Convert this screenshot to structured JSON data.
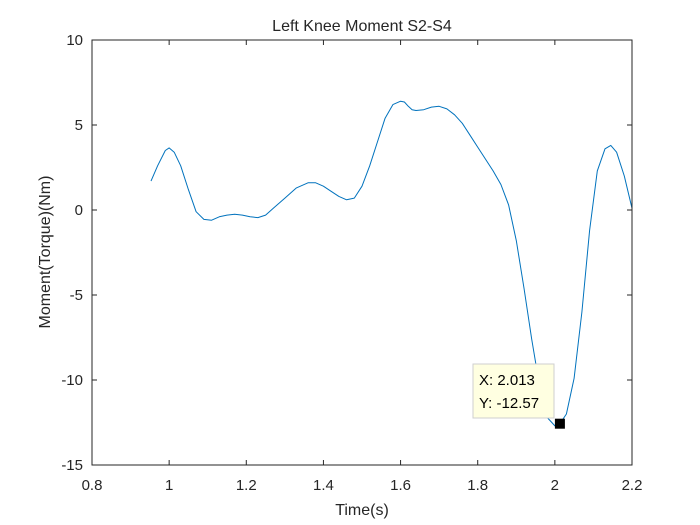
{
  "chart_data": {
    "type": "line",
    "title": "Left Knee Moment S2-S4",
    "xlabel": "Time(s)",
    "ylabel": "Moment(Torque)(Nm)",
    "xlim": [
      0.8,
      2.2
    ],
    "ylim": [
      -15,
      10
    ],
    "xticks": [
      0.8,
      1,
      1.2,
      1.4,
      1.6,
      1.8,
      2,
      2.2
    ],
    "xtick_labels": [
      "0.8",
      "1",
      "1.2",
      "1.4",
      "1.6",
      "1.8",
      "2",
      "2.2"
    ],
    "yticks": [
      10,
      5,
      0,
      -5,
      -10,
      -15
    ],
    "ytick_labels": [
      "10",
      "5",
      "0",
      "-5",
      "-10",
      "-15"
    ],
    "grid": false,
    "line_color": "#0072BD",
    "series": [
      {
        "x": [
          0.953,
          0.97,
          0.99,
          1.0,
          1.013,
          1.03,
          1.05,
          1.07,
          1.09,
          1.11,
          1.13,
          1.15,
          1.17,
          1.19,
          1.21,
          1.23,
          1.25,
          1.27,
          1.3,
          1.33,
          1.36,
          1.38,
          1.4,
          1.42,
          1.44,
          1.46,
          1.48,
          1.5,
          1.52,
          1.54,
          1.56,
          1.58,
          1.6,
          1.61,
          1.62,
          1.63,
          1.64,
          1.66,
          1.68,
          1.7,
          1.72,
          1.74,
          1.76,
          1.78,
          1.8,
          1.82,
          1.84,
          1.86,
          1.88,
          1.9,
          1.92,
          1.94,
          1.96,
          1.98,
          2.0,
          2.013,
          2.03,
          2.05,
          2.07,
          2.09,
          2.11,
          2.13,
          2.145,
          2.16,
          2.18,
          2.2
        ],
        "y": [
          1.7,
          2.6,
          3.5,
          3.65,
          3.4,
          2.6,
          1.2,
          -0.1,
          -0.55,
          -0.6,
          -0.4,
          -0.3,
          -0.25,
          -0.3,
          -0.4,
          -0.45,
          -0.3,
          0.1,
          0.7,
          1.3,
          1.6,
          1.6,
          1.4,
          1.1,
          0.8,
          0.6,
          0.7,
          1.4,
          2.6,
          4.0,
          5.4,
          6.2,
          6.4,
          6.35,
          6.1,
          5.9,
          5.85,
          5.9,
          6.05,
          6.1,
          5.95,
          5.6,
          5.1,
          4.4,
          3.7,
          3.0,
          2.3,
          1.5,
          0.3,
          -1.8,
          -4.6,
          -7.6,
          -10.3,
          -12.2,
          -12.7,
          -12.57,
          -12.0,
          -9.9,
          -6.0,
          -1.2,
          2.3,
          3.6,
          3.8,
          3.4,
          2.0,
          0.1
        ]
      }
    ],
    "datatip": {
      "x_text": "X: 2.013",
      "y_text": "Y: -12.57",
      "x": 2.013,
      "y": -12.57
    }
  }
}
